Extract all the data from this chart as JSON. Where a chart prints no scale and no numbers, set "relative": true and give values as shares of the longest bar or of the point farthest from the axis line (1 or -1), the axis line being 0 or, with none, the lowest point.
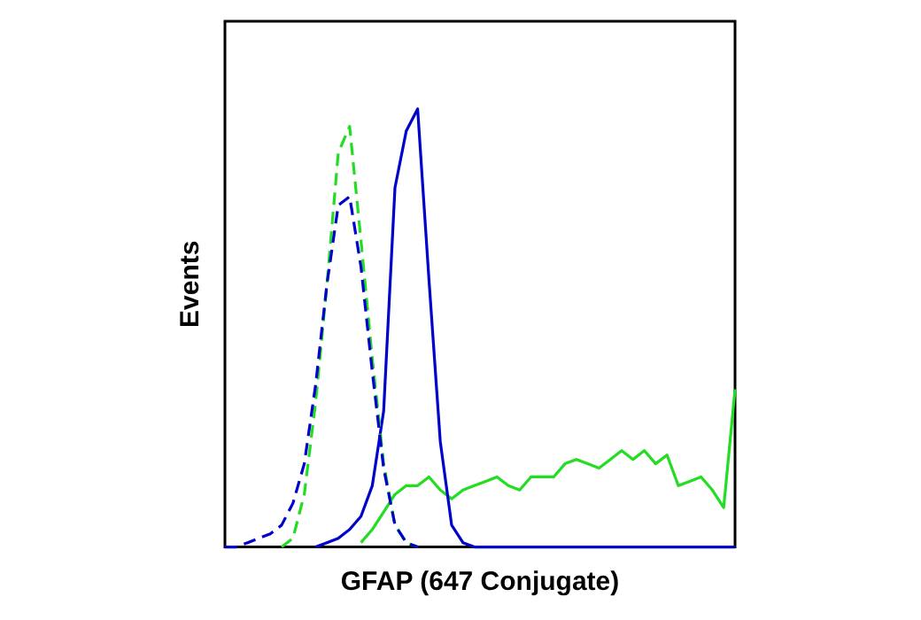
{
  "chart_data": {
    "type": "line",
    "relative": true,
    "xlabel": "GFAP (647 Conjugate)",
    "ylabel": "Events",
    "legend": false,
    "grid": false,
    "marker": "none",
    "categories": [
      null,
      null,
      null,
      null,
      null,
      null,
      null,
      null,
      null,
      null,
      null,
      null,
      null,
      null,
      null,
      null,
      null,
      null,
      null,
      null,
      null,
      null,
      null,
      null,
      null,
      null,
      null,
      null,
      null,
      null,
      null,
      null,
      null,
      null,
      null,
      null,
      null,
      null,
      null,
      null,
      null,
      null,
      null,
      null,
      null,
      null
    ],
    "series": [
      {
        "color": "#0000cc",
        "line_style": "dashed",
        "values": [
          0,
          0,
          0.01,
          0.02,
          0.03,
          0.05,
          0.1,
          0.19,
          0.37,
          0.6,
          0.78,
          0.8,
          0.64,
          0.4,
          0.18,
          0.05,
          0.01,
          0,
          null,
          null,
          null,
          null,
          null,
          null,
          null,
          null,
          null,
          null,
          null,
          null,
          null,
          null,
          null,
          null,
          null,
          null,
          null,
          null,
          null,
          null,
          null,
          null,
          null,
          null,
          null,
          null
        ]
      },
      {
        "color": "#22dd22",
        "line_style": "dashed",
        "values": [
          null,
          null,
          null,
          null,
          null,
          0,
          0.02,
          0.12,
          0.33,
          0.6,
          0.9,
          0.96,
          0.7,
          0.43,
          0.19,
          0.05,
          0.01,
          0,
          null,
          null,
          null,
          null,
          null,
          null,
          null,
          null,
          null,
          null,
          null,
          null,
          null,
          null,
          null,
          null,
          null,
          null,
          null,
          null,
          null,
          null,
          null,
          null,
          null,
          null,
          null,
          null
        ]
      },
      {
        "color": "#0000cc",
        "line_style": "solid",
        "values": [
          null,
          null,
          null,
          null,
          null,
          null,
          null,
          null,
          0,
          0.01,
          0.02,
          0.04,
          0.07,
          0.14,
          0.31,
          0.82,
          0.95,
          1,
          0.61,
          0.24,
          0.05,
          0.01,
          0,
          0,
          0,
          0,
          0,
          0,
          0,
          0,
          0,
          0,
          0,
          0,
          0,
          0,
          0,
          0,
          0,
          0,
          0,
          0,
          0,
          0,
          0,
          0
        ]
      },
      {
        "color": "#22dd22",
        "line_style": "solid",
        "values": [
          null,
          null,
          null,
          null,
          null,
          null,
          null,
          null,
          null,
          null,
          null,
          null,
          0.01,
          0.04,
          0.08,
          0.12,
          0.14,
          0.14,
          0.16,
          0.13,
          0.11,
          0.13,
          0.14,
          0.15,
          0.16,
          0.14,
          0.13,
          0.16,
          0.16,
          0.16,
          0.19,
          0.2,
          0.19,
          0.18,
          0.2,
          0.22,
          0.2,
          0.22,
          0.19,
          0.21,
          0.14,
          0.15,
          0.16,
          0.13,
          0.09,
          0.36
        ]
      }
    ]
  }
}
